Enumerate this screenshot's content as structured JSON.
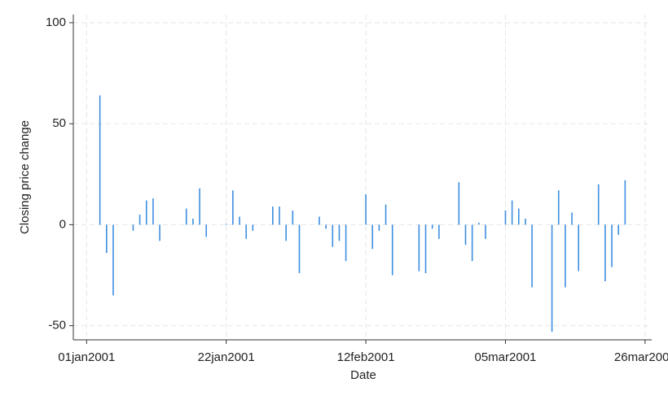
{
  "chart_data": {
    "type": "spike",
    "xlabel": "Date",
    "ylabel": "Closing price change",
    "x": [
      "2001-01-03",
      "2001-01-04",
      "2001-01-05",
      "2001-01-08",
      "2001-01-09",
      "2001-01-10",
      "2001-01-11",
      "2001-01-12",
      "2001-01-16",
      "2001-01-17",
      "2001-01-18",
      "2001-01-19",
      "2001-01-22",
      "2001-01-23",
      "2001-01-24",
      "2001-01-25",
      "2001-01-26",
      "2001-01-29",
      "2001-01-30",
      "2001-01-31",
      "2001-02-01",
      "2001-02-02",
      "2001-02-05",
      "2001-02-06",
      "2001-02-07",
      "2001-02-08",
      "2001-02-09",
      "2001-02-12",
      "2001-02-13",
      "2001-02-14",
      "2001-02-15",
      "2001-02-16",
      "2001-02-20",
      "2001-02-21",
      "2001-02-22",
      "2001-02-23",
      "2001-02-26",
      "2001-02-27",
      "2001-02-28",
      "2001-03-01",
      "2001-03-02",
      "2001-03-05",
      "2001-03-06",
      "2001-03-07",
      "2001-03-08",
      "2001-03-09",
      "2001-03-12",
      "2001-03-13",
      "2001-03-14",
      "2001-03-15",
      "2001-03-16",
      "2001-03-19",
      "2001-03-20",
      "2001-03-21",
      "2001-03-22",
      "2001-03-23"
    ],
    "values": [
      64,
      -14,
      -35,
      -3,
      5,
      12,
      13,
      -8,
      8,
      3,
      18,
      -6,
      0.5,
      17,
      4,
      -7,
      -3,
      9,
      9,
      -8,
      7,
      -24,
      4,
      -2,
      -11,
      -8,
      -18,
      15,
      -12,
      -3,
      10,
      -25,
      -23,
      -24,
      -2,
      -7,
      21,
      -10,
      -18,
      1,
      -7,
      7,
      12,
      8,
      3,
      -31,
      -53,
      17,
      -31,
      6,
      -23,
      20,
      -28,
      -21,
      -5,
      22
    ],
    "color": "#3d8ee0",
    "xlim": [
      "2000-12-30",
      "2001-03-27"
    ],
    "xticks": [
      {
        "value": "2001-01-01",
        "label": "01jan2001"
      },
      {
        "value": "2001-01-22",
        "label": "22jan2001"
      },
      {
        "value": "2001-02-12",
        "label": "12feb2001"
      },
      {
        "value": "2001-03-05",
        "label": "05mar2001"
      },
      {
        "value": "2001-03-26",
        "label": "26mar2001"
      }
    ],
    "ylim": [
      -57,
      104
    ],
    "yticks": [
      -50,
      0,
      50,
      100
    ],
    "grid": true
  }
}
